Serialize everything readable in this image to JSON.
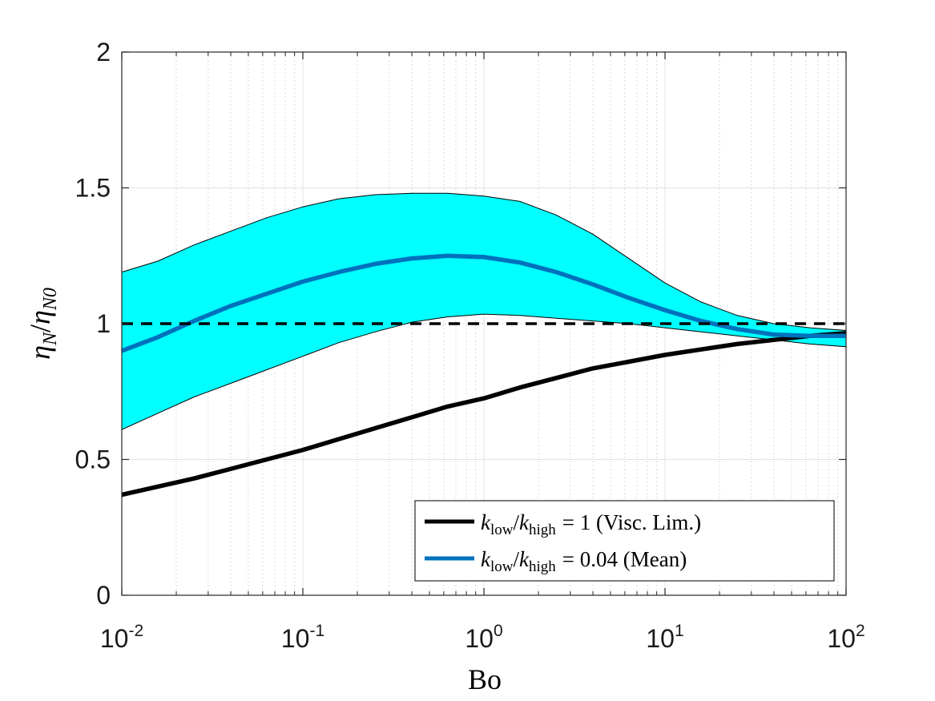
{
  "chart_data": {
    "type": "line",
    "xscale": "log",
    "xlim": [
      0.01,
      100
    ],
    "ylim": [
      0,
      2
    ],
    "grid": true,
    "xticks": [
      {
        "base": "10",
        "exp": "-2"
      },
      {
        "base": "10",
        "exp": "-1"
      },
      {
        "base": "10",
        "exp": "0"
      },
      {
        "base": "10",
        "exp": "1"
      },
      {
        "base": "10",
        "exp": "2"
      }
    ],
    "xtick_values": [
      0.01,
      0.1,
      1,
      10,
      100
    ],
    "yticks": [
      "0",
      "0.5",
      "1",
      "1.5",
      "2"
    ],
    "ytick_values": [
      0,
      0.5,
      1,
      1.5,
      2
    ],
    "xlabel": "Bo",
    "ylabel": {
      "base": "η",
      "sub": "N",
      "sep": "/",
      "base2": "η",
      "sub2": "N0"
    },
    "band": {
      "color": "#00ffff",
      "x": [
        0.01,
        0.0158,
        0.0251,
        0.0398,
        0.0631,
        0.1,
        0.158,
        0.251,
        0.398,
        0.631,
        1,
        1.58,
        2.51,
        3.98,
        6.31,
        10,
        15.8,
        25.1,
        39.8,
        63.1,
        100
      ],
      "upper": [
        1.19,
        1.23,
        1.29,
        1.34,
        1.39,
        1.43,
        1.46,
        1.475,
        1.48,
        1.48,
        1.47,
        1.45,
        1.4,
        1.33,
        1.24,
        1.15,
        1.08,
        1.03,
        1.0,
        0.985,
        0.975
      ],
      "lower": [
        0.61,
        0.67,
        0.73,
        0.78,
        0.83,
        0.88,
        0.93,
        0.97,
        1.005,
        1.025,
        1.035,
        1.03,
        1.02,
        1.01,
        1.0,
        0.985,
        0.97,
        0.955,
        0.94,
        0.925,
        0.915
      ]
    },
    "series": [
      {
        "name": "visc",
        "color": "#000000",
        "style": "solid",
        "x": [
          0.01,
          0.0158,
          0.0251,
          0.0398,
          0.0631,
          0.1,
          0.158,
          0.251,
          0.398,
          0.631,
          1,
          1.58,
          2.51,
          3.98,
          6.31,
          10,
          15.8,
          25.1,
          39.8,
          63.1,
          100
        ],
        "values": [
          0.37,
          0.4,
          0.43,
          0.465,
          0.5,
          0.535,
          0.575,
          0.615,
          0.655,
          0.695,
          0.725,
          0.765,
          0.8,
          0.835,
          0.86,
          0.885,
          0.905,
          0.925,
          0.94,
          0.955,
          0.965
        ]
      },
      {
        "name": "mean",
        "color": "#0072bd",
        "style": "solid",
        "x": [
          0.01,
          0.0158,
          0.0251,
          0.0398,
          0.0631,
          0.1,
          0.158,
          0.251,
          0.398,
          0.631,
          1,
          1.58,
          2.51,
          3.98,
          6.31,
          10,
          15.8,
          25.1,
          39.8,
          63.1,
          100
        ],
        "values": [
          0.9,
          0.95,
          1.01,
          1.065,
          1.11,
          1.155,
          1.19,
          1.22,
          1.24,
          1.25,
          1.245,
          1.225,
          1.19,
          1.145,
          1.095,
          1.05,
          1.01,
          0.98,
          0.96,
          0.955,
          0.955
        ]
      },
      {
        "name": "reference",
        "color": "#000000",
        "style": "dashed",
        "x": [
          0.01,
          100
        ],
        "values": [
          1,
          1
        ]
      }
    ],
    "legend": {
      "position": "bottom-right",
      "entries": [
        {
          "series": "visc",
          "color": "#000000",
          "k": "k",
          "sub1": "low",
          "sub2": "high",
          "equals": "= 1 (Visc. Lim.)"
        },
        {
          "series": "mean",
          "color": "#0072bd",
          "k": "k",
          "sub1": "low",
          "sub2": "high",
          "equals": "= 0.04 (Mean)"
        }
      ]
    }
  }
}
